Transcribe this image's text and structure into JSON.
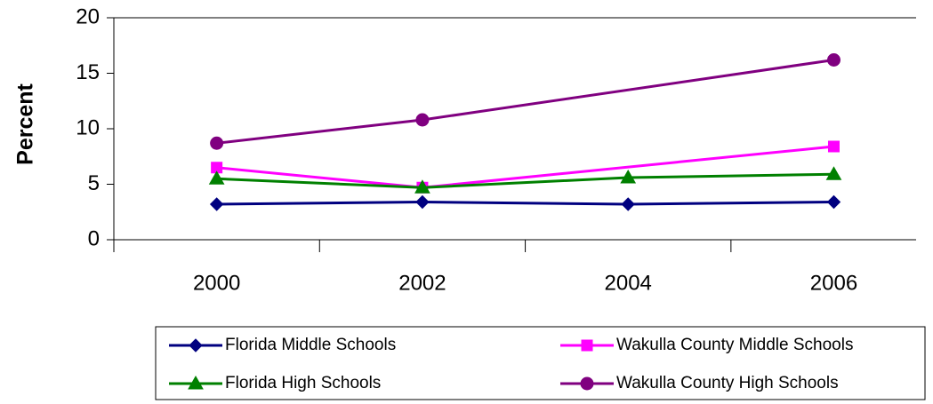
{
  "chart_data": {
    "type": "line",
    "y_label": "Percent",
    "xlim": [
      1999,
      2006.8
    ],
    "xticks": [
      2000,
      2002,
      2004,
      2006
    ],
    "ylim": [
      0,
      20
    ],
    "yticks": [
      0,
      5,
      10,
      15,
      20
    ],
    "series": [
      {
        "name": "Florida Middle Schools",
        "color": "#000080",
        "marker": "diamond",
        "x": [
          2000,
          2002,
          2004,
          2006
        ],
        "values": [
          3.2,
          3.4,
          3.2,
          3.4
        ]
      },
      {
        "name": "Wakulla County Middle Schools",
        "color": "#ff00ff",
        "marker": "square",
        "x": [
          2000,
          2002,
          2006
        ],
        "values": [
          6.5,
          4.7,
          8.4
        ]
      },
      {
        "name": "Florida High Schools",
        "color": "#008000",
        "marker": "triangle",
        "x": [
          2000,
          2002,
          2004,
          2006
        ],
        "values": [
          5.5,
          4.7,
          5.6,
          5.9
        ]
      },
      {
        "name": "Wakulla County High Schools",
        "color": "#800080",
        "marker": "circle",
        "x": [
          2000,
          2002,
          2006
        ],
        "values": [
          8.7,
          10.8,
          16.2
        ]
      }
    ]
  }
}
